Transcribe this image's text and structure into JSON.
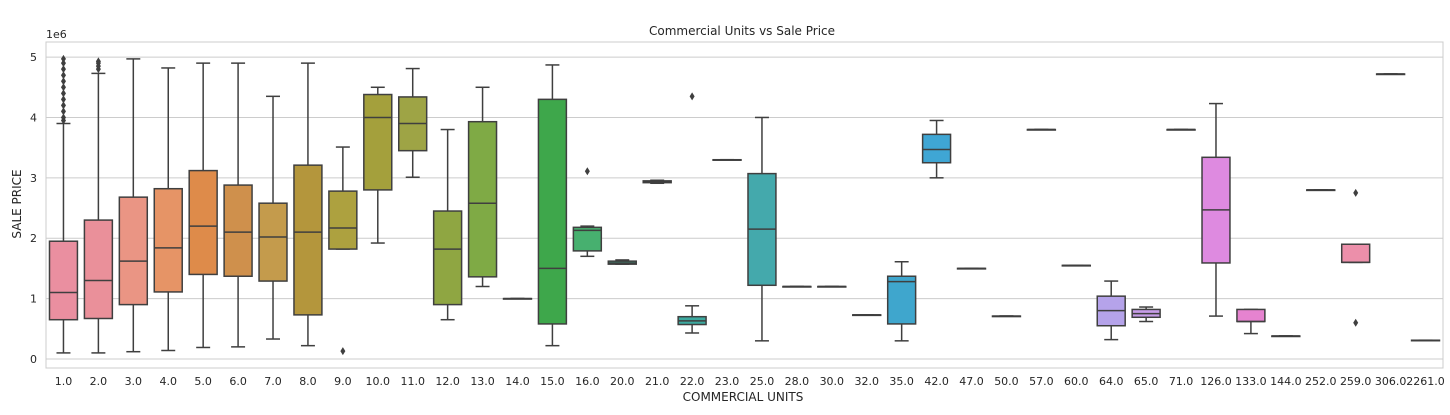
{
  "chart_data": {
    "type": "box",
    "title": "Commercial Units vs Sale Price",
    "xlabel": "COMMERCIAL UNITS",
    "ylabel": "SALE PRICE",
    "y_scale_label": "1e6",
    "ylim": [
      -0.15,
      5.25
    ],
    "yticks": [
      0,
      1,
      2,
      3,
      4,
      5
    ],
    "grid": "horizontal",
    "categories": [
      "1.0",
      "2.0",
      "3.0",
      "4.0",
      "5.0",
      "6.0",
      "7.0",
      "8.0",
      "9.0",
      "10.0",
      "11.0",
      "12.0",
      "13.0",
      "14.0",
      "15.0",
      "16.0",
      "20.0",
      "21.0",
      "22.0",
      "23.0",
      "25.0",
      "28.0",
      "30.0",
      "32.0",
      "35.0",
      "42.0",
      "47.0",
      "50.0",
      "57.0",
      "60.0",
      "64.0",
      "65.0",
      "71.0",
      "126.0",
      "133.0",
      "144.0",
      "252.0",
      "259.0",
      "306.0",
      "2261.0"
    ],
    "colors": [
      "#ea8fa0",
      "#ea909a",
      "#ea9584",
      "#e69466",
      "#de8b4a",
      "#cf904c",
      "#c49b4c",
      "#b4963c",
      "#ada13f",
      "#a4a03c",
      "#9ea445",
      "#8fa642",
      "#7faa45",
      "#6cae4e",
      "#3ea74b",
      "#47b06f",
      "#3eaa8a",
      "#3ea895",
      "#3ca99f",
      "#3aa9a9",
      "#44a9ac",
      "#3ba9b1",
      "#3ca8b8",
      "#3da8c2",
      "#3fa6cd",
      "#3fa6d4",
      "#60a3dc",
      "#7ba6de",
      "#98a3e2",
      "#a9a3e8",
      "#b5a3ea",
      "#c79de8",
      "#d48fe4",
      "#de8ae0",
      "#e683d0",
      "#e98cc3",
      "#eb8db3",
      "#ec8faa",
      "#ec90a3",
      "#ee91a0"
    ],
    "boxes": [
      {
        "q1": 0.65,
        "median": 1.1,
        "q3": 1.95,
        "whislo": 0.1,
        "whishi": 3.9,
        "fliers": [
          3.95,
          4.0,
          4.1,
          4.2,
          4.3,
          4.4,
          4.5,
          4.6,
          4.7,
          4.8,
          4.9,
          4.97
        ]
      },
      {
        "q1": 0.67,
        "median": 1.3,
        "q3": 2.3,
        "whislo": 0.1,
        "whishi": 4.73,
        "fliers": [
          4.8,
          4.85,
          4.9,
          4.93
        ]
      },
      {
        "q1": 0.9,
        "median": 1.62,
        "q3": 2.68,
        "whislo": 0.12,
        "whishi": 4.97,
        "fliers": []
      },
      {
        "q1": 1.11,
        "median": 1.84,
        "q3": 2.82,
        "whislo": 0.14,
        "whishi": 4.82,
        "fliers": []
      },
      {
        "q1": 1.4,
        "median": 2.2,
        "q3": 3.12,
        "whislo": 0.19,
        "whishi": 4.9,
        "fliers": []
      },
      {
        "q1": 1.37,
        "median": 2.1,
        "q3": 2.88,
        "whislo": 0.2,
        "whishi": 4.9,
        "fliers": []
      },
      {
        "q1": 1.29,
        "median": 2.02,
        "q3": 2.58,
        "whislo": 0.33,
        "whishi": 4.35,
        "fliers": []
      },
      {
        "q1": 0.73,
        "median": 2.1,
        "q3": 3.21,
        "whislo": 0.22,
        "whishi": 4.9,
        "fliers": []
      },
      {
        "q1": 1.82,
        "median": 2.17,
        "q3": 2.78,
        "whislo": 1.82,
        "whishi": 3.51,
        "fliers": [
          0.13
        ]
      },
      {
        "q1": 2.8,
        "median": 4.0,
        "q3": 4.38,
        "whislo": 1.92,
        "whishi": 4.5,
        "fliers": []
      },
      {
        "q1": 3.45,
        "median": 3.9,
        "q3": 4.34,
        "whislo": 3.01,
        "whishi": 4.81,
        "fliers": []
      },
      {
        "q1": 0.9,
        "median": 1.82,
        "q3": 2.45,
        "whislo": 0.65,
        "whishi": 3.8,
        "fliers": []
      },
      {
        "q1": 1.36,
        "median": 2.58,
        "q3": 3.93,
        "whislo": 1.2,
        "whishi": 4.5,
        "fliers": []
      },
      {
        "q1": 1.0,
        "median": 1.0,
        "q3": 1.0,
        "whislo": 1.0,
        "whishi": 1.0,
        "fliers": []
      },
      {
        "q1": 0.58,
        "median": 1.5,
        "q3": 4.3,
        "whislo": 0.22,
        "whishi": 4.87,
        "fliers": []
      },
      {
        "q1": 1.79,
        "median": 2.13,
        "q3": 2.18,
        "whislo": 1.7,
        "whishi": 2.2,
        "fliers": [
          3.11
        ]
      },
      {
        "q1": 1.57,
        "median": 1.59,
        "q3": 1.62,
        "whislo": 1.57,
        "whishi": 1.64,
        "fliers": []
      },
      {
        "q1": 2.92,
        "median": 2.93,
        "q3": 2.95,
        "whislo": 2.91,
        "whishi": 2.96,
        "fliers": []
      },
      {
        "q1": 0.57,
        "median": 0.63,
        "q3": 0.7,
        "whislo": 0.43,
        "whishi": 0.88,
        "fliers": [
          4.35
        ]
      },
      {
        "q1": 3.3,
        "median": 3.3,
        "q3": 3.3,
        "whislo": 3.3,
        "whishi": 3.3,
        "fliers": []
      },
      {
        "q1": 1.22,
        "median": 2.15,
        "q3": 3.07,
        "whislo": 0.3,
        "whishi": 4.0,
        "fliers": []
      },
      {
        "q1": 1.2,
        "median": 1.2,
        "q3": 1.2,
        "whislo": 1.2,
        "whishi": 1.2,
        "fliers": []
      },
      {
        "q1": 1.2,
        "median": 1.2,
        "q3": 1.2,
        "whislo": 1.2,
        "whishi": 1.2,
        "fliers": []
      },
      {
        "q1": 0.73,
        "median": 0.73,
        "q3": 0.73,
        "whislo": 0.73,
        "whishi": 0.73,
        "fliers": []
      },
      {
        "q1": 0.58,
        "median": 1.28,
        "q3": 1.37,
        "whislo": 0.3,
        "whishi": 1.61,
        "fliers": []
      },
      {
        "q1": 3.25,
        "median": 3.47,
        "q3": 3.72,
        "whislo": 3.0,
        "whishi": 3.95,
        "fliers": []
      },
      {
        "q1": 1.5,
        "median": 1.5,
        "q3": 1.5,
        "whislo": 1.5,
        "whishi": 1.5,
        "fliers": []
      },
      {
        "q1": 0.71,
        "median": 0.71,
        "q3": 0.71,
        "whislo": 0.71,
        "whishi": 0.71,
        "fliers": []
      },
      {
        "q1": 3.8,
        "median": 3.8,
        "q3": 3.8,
        "whislo": 3.8,
        "whishi": 3.8,
        "fliers": []
      },
      {
        "q1": 1.55,
        "median": 1.55,
        "q3": 1.55,
        "whislo": 1.55,
        "whishi": 1.55,
        "fliers": []
      },
      {
        "q1": 0.55,
        "median": 0.8,
        "q3": 1.04,
        "whislo": 0.32,
        "whishi": 1.29,
        "fliers": []
      },
      {
        "q1": 0.69,
        "median": 0.75,
        "q3": 0.82,
        "whislo": 0.62,
        "whishi": 0.86,
        "fliers": []
      },
      {
        "q1": 3.8,
        "median": 3.8,
        "q3": 3.8,
        "whislo": 3.8,
        "whishi": 3.8,
        "fliers": []
      },
      {
        "q1": 1.59,
        "median": 2.47,
        "q3": 3.34,
        "whislo": 0.71,
        "whishi": 4.23,
        "fliers": []
      },
      {
        "q1": 0.62,
        "median": 0.62,
        "q3": 0.82,
        "whislo": 0.42,
        "whishi": 0.82,
        "fliers": []
      },
      {
        "q1": 0.38,
        "median": 0.38,
        "q3": 0.38,
        "whislo": 0.38,
        "whishi": 0.38,
        "fliers": []
      },
      {
        "q1": 2.8,
        "median": 2.8,
        "q3": 2.8,
        "whislo": 2.8,
        "whishi": 2.8,
        "fliers": []
      },
      {
        "q1": 1.6,
        "median": 1.6,
        "q3": 1.9,
        "whislo": 1.6,
        "whishi": 1.9,
        "fliers": [
          0.6,
          2.75
        ]
      },
      {
        "q1": 4.72,
        "median": 4.72,
        "q3": 4.72,
        "whislo": 4.72,
        "whishi": 4.72,
        "fliers": []
      },
      {
        "q1": 0.31,
        "median": 0.31,
        "q3": 0.31,
        "whislo": 0.31,
        "whishi": 0.31,
        "fliers": []
      }
    ]
  }
}
